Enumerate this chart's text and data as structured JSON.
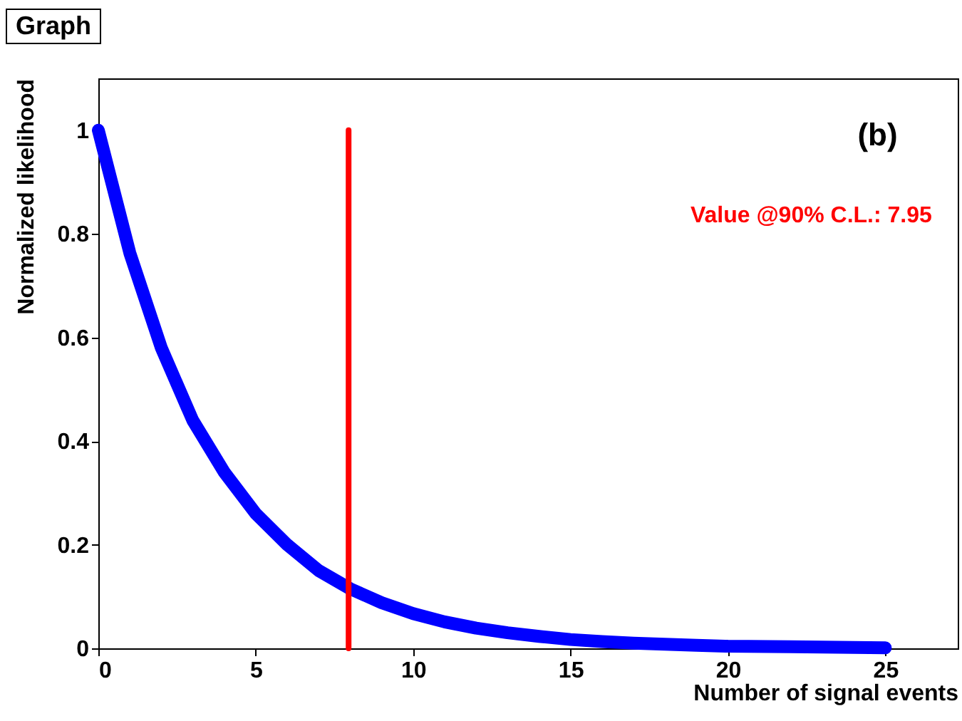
{
  "chart_data": {
    "type": "line",
    "title": "Graph",
    "xlabel": "Number of signal events",
    "ylabel": "Normalized likelihood",
    "annotations": [
      "(b)",
      "Value @90% C.L.: 7.95"
    ],
    "xlim": [
      0,
      27.3
    ],
    "xticks": [
      0,
      5,
      10,
      15,
      20,
      25
    ],
    "ylim": [
      0,
      1.1
    ],
    "yticks": [
      0,
      0.2,
      0.4,
      0.6,
      0.8,
      1
    ],
    "grid": false,
    "series": [
      {
        "color": "#0000ff",
        "x": [
          0,
          1,
          2,
          3,
          4,
          5,
          6,
          7,
          8,
          9,
          10,
          11,
          12,
          13,
          14,
          15,
          16,
          17,
          18,
          19,
          20,
          22,
          25
        ],
        "values": [
          1,
          0.763,
          0.58,
          0.44,
          0.34,
          0.26,
          0.2,
          0.15,
          0.115,
          0.088,
          0.067,
          0.051,
          0.039,
          0.03,
          0.023,
          0.017,
          0.013,
          0.01,
          0.008,
          0.006,
          0.004,
          0.003,
          0.001
        ]
      },
      {
        "color": "#ff0000",
        "x": [
          7.95,
          7.95
        ],
        "values": [
          0,
          1
        ]
      }
    ]
  }
}
